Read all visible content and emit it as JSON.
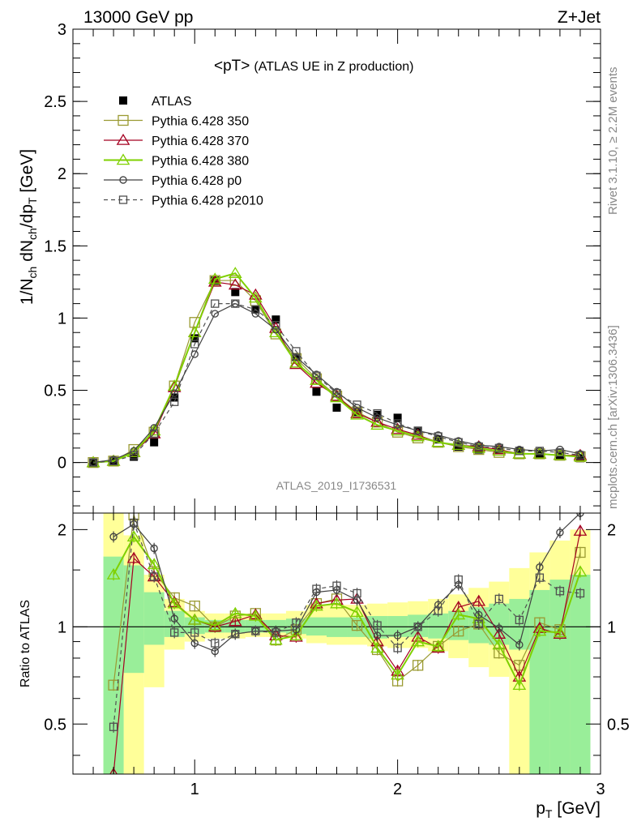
{
  "header": {
    "energy_label": "13000 GeV pp",
    "process_label": "Z+Jet"
  },
  "side_labels": {
    "rivet": "Rivet 3.1.10, ≥ 2.2M events",
    "mcplots": "mcplots.cern.ch [arXiv:1306.3436]"
  },
  "chart_data": [
    {
      "type": "line",
      "panel": "main",
      "title_main": "<pT>",
      "title_sub": "(ATLAS UE in Z production)",
      "ylabel": "1/N_ch dN_ch/dp_T [GeV]",
      "analysis_label": "ATLAS_2019_I1736531",
      "xlim": [
        0.4,
        3.0
      ],
      "ylim": [
        -0.35,
        3.0
      ],
      "yticks": [
        "0",
        "0.5",
        "1",
        "1.5",
        "2",
        "2.5",
        "3"
      ],
      "legend_position": "top-left",
      "x": [
        0.5,
        0.6,
        0.7,
        0.8,
        0.9,
        1.0,
        1.1,
        1.2,
        1.3,
        1.4,
        1.5,
        1.6,
        1.7,
        1.8,
        1.9,
        2.0,
        2.1,
        2.2,
        2.3,
        2.4,
        2.5,
        2.6,
        2.7,
        2.8,
        2.9
      ],
      "series": [
        {
          "name": "ATLAS",
          "color": "#000000",
          "marker": "filled-square",
          "values": [
            0.0,
            0.01,
            0.04,
            0.14,
            0.45,
            0.86,
            1.26,
            1.18,
            1.06,
            0.99,
            0.73,
            0.49,
            0.38,
            0.35,
            0.33,
            0.31,
            0.22,
            0.16,
            0.11,
            0.09,
            0.09,
            0.08,
            0.06,
            0.05,
            0.03
          ]
        },
        {
          "name": "Pythia 6.428 350",
          "color": "#9a9a32",
          "marker": "open-square",
          "values": [
            0.0,
            0.01,
            0.09,
            0.21,
            0.53,
            0.97,
            1.26,
            1.26,
            1.12,
            0.89,
            0.72,
            0.58,
            0.46,
            0.35,
            0.28,
            0.21,
            0.17,
            0.14,
            0.11,
            0.09,
            0.07,
            0.06,
            0.06,
            0.05,
            0.04
          ]
        },
        {
          "name": "Pythia 6.428 370",
          "color": "#a50021",
          "marker": "open-triangle",
          "values": [
            0.0,
            0.01,
            0.07,
            0.2,
            0.52,
            0.9,
            1.25,
            1.23,
            1.16,
            0.93,
            0.68,
            0.55,
            0.46,
            0.34,
            0.28,
            0.23,
            0.19,
            0.14,
            0.12,
            0.11,
            0.09,
            0.06,
            0.06,
            0.05,
            0.05
          ]
        },
        {
          "name": "Pythia 6.428 380",
          "color": "#7fd000",
          "marker": "open-triangle",
          "values": [
            0.0,
            0.01,
            0.07,
            0.22,
            0.53,
            0.9,
            1.27,
            1.31,
            1.14,
            0.9,
            0.69,
            0.57,
            0.45,
            0.33,
            0.26,
            0.22,
            0.18,
            0.14,
            0.12,
            0.1,
            0.08,
            0.06,
            0.06,
            0.05,
            0.04
          ]
        },
        {
          "name": "Pythia 6.428 p0",
          "color": "#404040",
          "marker": "open-circle",
          "values": [
            0.0,
            0.02,
            0.08,
            0.24,
            0.48,
            0.75,
            1.03,
            1.1,
            1.03,
            0.92,
            0.73,
            0.61,
            0.49,
            0.38,
            0.31,
            0.26,
            0.22,
            0.19,
            0.15,
            0.12,
            0.11,
            0.09,
            0.08,
            0.09,
            0.06
          ]
        },
        {
          "name": "Pythia 6.428 p2010",
          "color": "#505050",
          "marker": "open-square-dashed",
          "values": [
            0.0,
            0.01,
            0.05,
            0.2,
            0.42,
            0.82,
            1.1,
            1.1,
            1.06,
            0.95,
            0.77,
            0.6,
            0.48,
            0.4,
            0.34,
            0.27,
            0.22,
            0.18,
            0.14,
            0.11,
            0.1,
            0.08,
            0.08,
            0.07,
            0.05
          ]
        }
      ]
    },
    {
      "type": "line",
      "panel": "ratio",
      "ylabel": "Ratio to ATLAS",
      "xlabel": "p_T [GeV]",
      "xlim": [
        0.4,
        3.0
      ],
      "ylim": [
        0.35,
        2.25
      ],
      "xticks": [
        "1",
        "2",
        "3"
      ],
      "yticks": [
        "0.5",
        "1",
        "2"
      ],
      "x": [
        0.6,
        0.7,
        0.8,
        0.9,
        1.0,
        1.1,
        1.2,
        1.3,
        1.4,
        1.5,
        1.6,
        1.7,
        1.8,
        1.9,
        2.0,
        2.1,
        2.2,
        2.3,
        2.4,
        2.5,
        2.6,
        2.7,
        2.8,
        2.9
      ],
      "bands": [
        {
          "name": "stat",
          "color": "#99ee99",
          "edges": [
            0.55,
            0.65,
            0.75,
            0.85,
            0.95,
            1.05,
            1.15,
            1.25,
            1.35,
            1.45,
            1.55,
            1.65,
            1.75,
            1.85,
            1.95,
            2.05,
            2.15,
            2.25,
            2.35,
            2.45,
            2.55,
            2.65,
            2.75,
            2.85,
            2.95
          ],
          "lo": [
            0.35,
            0.72,
            0.88,
            0.93,
            0.95,
            0.96,
            0.96,
            0.96,
            0.96,
            0.95,
            0.94,
            0.93,
            0.93,
            0.92,
            0.93,
            0.93,
            0.92,
            0.91,
            0.89,
            0.88,
            0.85,
            0.35,
            0.35,
            0.35
          ],
          "hi": [
            1.65,
            1.55,
            1.28,
            1.12,
            1.07,
            1.05,
            1.05,
            1.05,
            1.05,
            1.06,
            1.07,
            1.07,
            1.07,
            1.08,
            1.08,
            1.09,
            1.1,
            1.12,
            1.15,
            1.18,
            1.22,
            1.3,
            1.4,
            1.45
          ]
        },
        {
          "name": "total",
          "color": "#ffff99",
          "edges": [
            0.55,
            0.65,
            0.75,
            0.85,
            0.95,
            1.05,
            1.15,
            1.25,
            1.35,
            1.45,
            1.55,
            1.65,
            1.75,
            1.85,
            1.95,
            2.05,
            2.15,
            2.25,
            2.35,
            2.45,
            2.55,
            2.65,
            2.75,
            2.85,
            2.95
          ],
          "lo": [
            0.35,
            0.35,
            0.65,
            0.85,
            0.9,
            0.92,
            0.92,
            0.93,
            0.93,
            0.92,
            0.89,
            0.88,
            0.88,
            0.87,
            0.86,
            0.86,
            0.84,
            0.8,
            0.75,
            0.7,
            0.35,
            0.35,
            0.35,
            0.35
          ],
          "hi": [
            2.25,
            1.92,
            1.45,
            1.22,
            1.12,
            1.1,
            1.1,
            1.1,
            1.1,
            1.12,
            1.17,
            1.17,
            1.17,
            1.18,
            1.19,
            1.2,
            1.22,
            1.26,
            1.32,
            1.38,
            1.52,
            1.7,
            1.85,
            2.0
          ]
        }
      ],
      "series": [
        {
          "name": "Pythia 6.428 350",
          "color": "#9a9a32",
          "marker": "open-square",
          "values": [
            0.66,
            2.22,
            1.48,
            1.23,
            1.16,
            1.0,
            1.08,
            1.1,
            0.91,
            0.98,
            1.18,
            1.22,
            1.01,
            0.85,
            0.68,
            0.76,
            0.87,
            0.97,
            1.02,
            0.83,
            0.76,
            1.03,
            0.98,
            1.7
          ]
        },
        {
          "name": "Pythia 6.428 370",
          "color": "#a50021",
          "marker": "open-triangle",
          "values": [
            0.35,
            1.63,
            1.43,
            1.19,
            1.05,
            1.0,
            1.04,
            1.09,
            0.94,
            0.93,
            1.18,
            1.21,
            1.22,
            0.9,
            0.73,
            0.93,
            0.86,
            1.15,
            1.2,
            0.95,
            0.7,
            0.99,
            0.95,
            1.98
          ]
        },
        {
          "name": "Pythia 6.428 380",
          "color": "#7fd000",
          "marker": "open-triangle",
          "values": [
            1.45,
            1.9,
            1.56,
            1.18,
            1.05,
            1.01,
            1.1,
            1.08,
            0.91,
            0.94,
            1.16,
            1.18,
            1.11,
            0.86,
            0.71,
            0.9,
            0.87,
            1.09,
            1.06,
            0.88,
            0.66,
            0.97,
            0.96,
            1.48
          ]
        },
        {
          "name": "Pythia 6.428 p0",
          "color": "#404040",
          "marker": "open-circle",
          "values": [
            1.9,
            2.08,
            1.75,
            1.06,
            0.89,
            0.84,
            0.95,
            0.97,
            0.97,
            0.98,
            1.28,
            1.3,
            1.21,
            0.94,
            0.94,
            1.0,
            1.17,
            1.35,
            1.09,
            0.99,
            0.88,
            1.53,
            1.96,
            2.25
          ]
        },
        {
          "name": "Pythia 6.428 p2010",
          "color": "#505050",
          "marker": "open-square-dashed",
          "values": [
            0.49,
            2.1,
            1.43,
            0.96,
            0.96,
            0.89,
            0.95,
            0.97,
            0.96,
            1.03,
            1.31,
            1.34,
            1.27,
            1.01,
            0.86,
            1.0,
            1.12,
            1.4,
            1.02,
            1.22,
            1.05,
            1.42,
            1.29,
            1.27
          ]
        }
      ]
    }
  ]
}
